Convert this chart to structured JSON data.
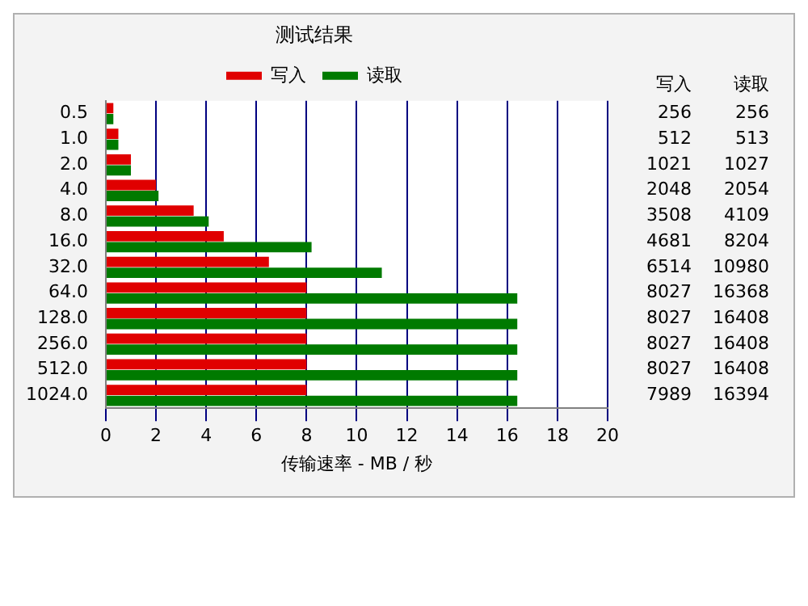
{
  "chart_data": {
    "type": "bar",
    "orientation": "horizontal",
    "title": "测试结果",
    "xlabel": "传输速率 - MB / 秒",
    "categories": [
      "0.5",
      "1.0",
      "2.0",
      "4.0",
      "8.0",
      "16.0",
      "32.0",
      "64.0",
      "128.0",
      "256.0",
      "512.0",
      "1024.0"
    ],
    "series": [
      {
        "name": "写入",
        "color": "#e00000",
        "values": [
          0.3,
          0.5,
          1.0,
          2.0,
          3.5,
          4.7,
          6.5,
          8.0,
          8.0,
          8.0,
          8.0,
          8.0
        ]
      },
      {
        "name": "读取",
        "color": "#007a00",
        "values": [
          0.3,
          0.5,
          1.0,
          2.1,
          4.1,
          8.2,
          11.0,
          16.4,
          16.4,
          16.4,
          16.4,
          16.4
        ]
      }
    ],
    "annotations": [
      "写入",
      "读取",
      "256",
      "256",
      "512",
      "513",
      "1021",
      "1027",
      "2048",
      "2054",
      "3508",
      "4109",
      "4681",
      "8204",
      "6514",
      "10980",
      "8027",
      "16368",
      "8027",
      "16408",
      "8027",
      "16408",
      "8027",
      "16408",
      "7989",
      "16394"
    ],
    "xlim": [
      0,
      20
    ],
    "xticks": [
      0,
      2,
      4,
      6,
      8,
      10,
      12,
      14,
      16,
      18,
      20
    ],
    "grid": "x",
    "legend": "top"
  }
}
